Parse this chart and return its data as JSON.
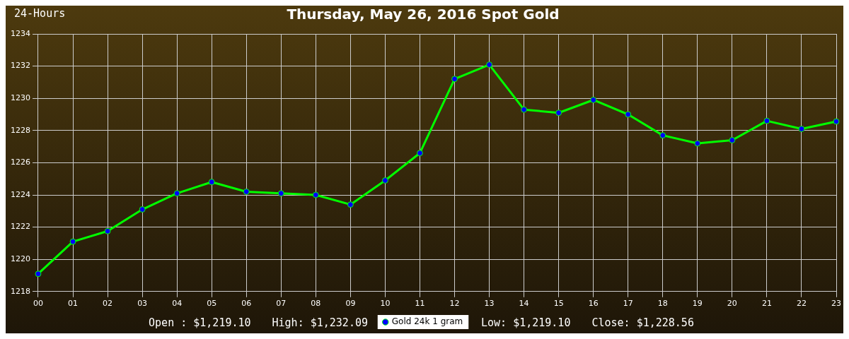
{
  "chart_data": {
    "type": "line",
    "title": "Thursday, May 26, 2016 Spot Gold",
    "categories": [
      "00",
      "01",
      "02",
      "03",
      "04",
      "05",
      "06",
      "07",
      "08",
      "09",
      "10",
      "11",
      "12",
      "13",
      "14",
      "15",
      "16",
      "17",
      "18",
      "19",
      "20",
      "21",
      "22",
      "23"
    ],
    "series": [
      {
        "name": "Gold 24k 1 gram",
        "color": "#00ff00",
        "values": [
          1219.1,
          1221.1,
          1221.75,
          1223.1,
          1224.1,
          1224.8,
          1224.2,
          1224.1,
          1224.0,
          1223.4,
          1224.9,
          1226.6,
          1231.2,
          1232.09,
          1229.3,
          1229.1,
          1229.9,
          1229.0,
          1227.7,
          1227.2,
          1227.4,
          1228.6,
          1228.1,
          1228.56
        ]
      }
    ],
    "ylim": [
      1218,
      1234
    ],
    "yticks": [
      1218,
      1220,
      1222,
      1224,
      1226,
      1228,
      1230,
      1232,
      1234
    ],
    "grid": true,
    "legend": "bottom",
    "marker": "circle",
    "line_style": "solid",
    "annotations": [
      "24-Hours",
      "Open : $1,219.10",
      "High: $1,232.09",
      "Low: $1,219.10",
      "Close: $1,228.56"
    ]
  }
}
